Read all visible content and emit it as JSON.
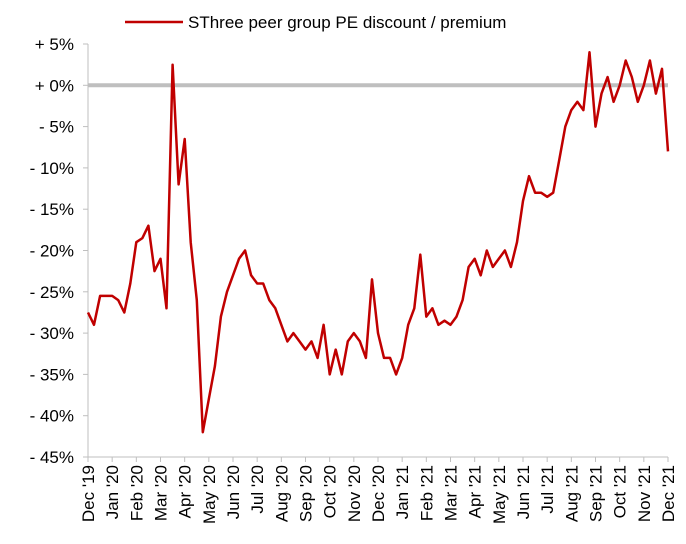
{
  "chart_data": {
    "type": "line",
    "categories": [
      "Dec '19",
      null,
      null,
      null,
      "Jan '20",
      null,
      null,
      null,
      "Feb '20",
      null,
      null,
      null,
      "Mar '20",
      null,
      null,
      null,
      "Apr '20",
      null,
      null,
      null,
      "May '20",
      null,
      null,
      null,
      "Jun '20",
      null,
      null,
      null,
      "Jul '20",
      null,
      null,
      null,
      "Aug '20",
      null,
      null,
      null,
      "Sep '20",
      null,
      null,
      null,
      "Oct '20",
      null,
      null,
      null,
      "Nov '20",
      null,
      null,
      null,
      "Dec '20",
      null,
      null,
      null,
      "Jan '21",
      null,
      null,
      null,
      "Feb '21",
      null,
      null,
      null,
      "Mar '21",
      null,
      null,
      null,
      "Apr '21",
      null,
      null,
      null,
      "May '21",
      null,
      null,
      null,
      "Jun '21",
      null,
      null,
      null,
      "Jul '21",
      null,
      null,
      null,
      "Aug '21",
      null,
      null,
      null,
      "Sep '21",
      null,
      null,
      null,
      "Oct '21",
      null,
      null,
      null,
      "Nov '21",
      null,
      null,
      null,
      "Dec '21"
    ],
    "series": [
      {
        "name": "SThree peer group PE discount / premium",
        "color": "#c00000",
        "values": [
          -27.5,
          -29,
          -25.5,
          -25.5,
          -25.5,
          -26,
          -27.5,
          -24,
          -19,
          -18.5,
          -17,
          -22.5,
          -21,
          -27,
          2.5,
          -12,
          -6.5,
          -19,
          -26,
          -42,
          -38,
          -34,
          -28,
          -25,
          -23,
          -21,
          -20,
          -23,
          -24,
          -24,
          -26,
          -27,
          -29,
          -31,
          -30,
          -31,
          -32,
          -31,
          -33,
          -29,
          -35,
          -32,
          -35,
          -31,
          -30,
          -31,
          -33,
          -23.5,
          -30,
          -33,
          -33,
          -35,
          -33,
          -29,
          -27,
          -20.5,
          -28,
          -27,
          -29,
          -28.5,
          -29,
          -28,
          -26,
          -22,
          -21,
          -23,
          -20,
          -22,
          -21,
          -20,
          -22,
          -19,
          -14,
          -11,
          -13,
          -13,
          -13.5,
          -13,
          -9,
          -5,
          -3,
          -2,
          -3,
          4,
          -5,
          -1,
          1,
          -2,
          0,
          3,
          1,
          -2,
          0,
          3,
          -1,
          2,
          -8
        ]
      }
    ],
    "ylim": [
      -45,
      5
    ],
    "yticks": [
      {
        "value": -45,
        "label": "- 45%"
      },
      {
        "value": -40,
        "label": "- 40%"
      },
      {
        "value": -35,
        "label": "- 35%"
      },
      {
        "value": -30,
        "label": "- 30%"
      },
      {
        "value": -25,
        "label": "- 25%"
      },
      {
        "value": -20,
        "label": "- 20%"
      },
      {
        "value": -15,
        "label": "- 15%"
      },
      {
        "value": -10,
        "label": "- 10%"
      },
      {
        "value": -5,
        "label": "- 5%"
      },
      {
        "value": 0,
        "label": "+ 0%"
      },
      {
        "value": 5,
        "label": "+ 5%"
      }
    ],
    "zero_line_color": "#bfbfbf",
    "legend": "top"
  }
}
